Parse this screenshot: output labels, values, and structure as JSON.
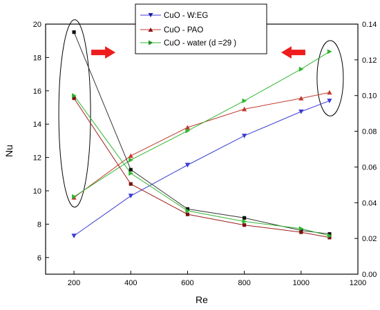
{
  "chart_data": {
    "type": "line",
    "x": [
      200,
      400,
      600,
      800,
      1000,
      1100
    ],
    "xlabel": "Re",
    "ylabel": "Nu",
    "xlim": [
      100,
      1200
    ],
    "ylim": [
      5,
      20
    ],
    "y2lim": [
      0,
      0.14
    ],
    "x_ticks": [
      "200",
      "400",
      "600",
      "800",
      "1000",
      "1200"
    ],
    "y_ticks": [
      "6",
      "8",
      "10",
      "12",
      "14",
      "16",
      "18",
      "20"
    ],
    "y2_ticks": [
      "0.00",
      "0.02",
      "0.04",
      "0.06",
      "0.08",
      "0.10",
      "0.12",
      "0.14"
    ],
    "grid": false,
    "legend_position": "top-center",
    "series": [
      {
        "name": "CuO - W:EG",
        "axis": "left",
        "marker": "triangle-down",
        "color": "#3a3ad6",
        "values": [
          7.3,
          9.7,
          11.55,
          13.3,
          14.75,
          15.4
        ]
      },
      {
        "name": "CuO - PAO",
        "axis": "left",
        "marker": "triangle-up",
        "color": "#c0392b",
        "values": [
          9.6,
          12.1,
          13.8,
          14.9,
          15.55,
          15.9
        ]
      },
      {
        "name": "CuO - water (d =29 )",
        "axis": "left",
        "marker": "triangle-right",
        "color": "#2fb52f",
        "values": [
          9.65,
          11.85,
          13.6,
          15.4,
          17.3,
          18.35
        ]
      },
      {
        "name": "",
        "axis": "right",
        "marker": "square",
        "color": "#333333",
        "values": [
          0.1355,
          0.0585,
          0.0365,
          0.0315,
          0.0245,
          0.0225
        ]
      },
      {
        "name": "",
        "axis": "right",
        "marker": "square",
        "color": "#9b1b1b",
        "values": [
          0.0985,
          0.0505,
          0.0335,
          0.0275,
          0.0235,
          0.0205
        ]
      },
      {
        "name": "",
        "axis": "right",
        "marker": "triangle-right",
        "color": "#2fb52f",
        "values": [
          0.1,
          0.0565,
          0.0355,
          0.0295,
          0.0255,
          0.0215
        ]
      }
    ],
    "annotations": [
      {
        "type": "ellipse",
        "color": "#000000"
      },
      {
        "type": "ellipse",
        "color": "#000000"
      },
      {
        "type": "arrow",
        "direction": "right",
        "color": "#ee1c1c"
      },
      {
        "type": "arrow",
        "direction": "left",
        "color": "#ee1c1c"
      }
    ]
  }
}
